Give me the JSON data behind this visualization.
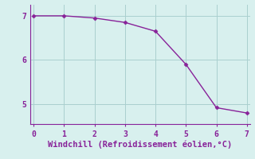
{
  "x": [
    0,
    1,
    2,
    3,
    4,
    5,
    6,
    7
  ],
  "y": [
    7.0,
    7.0,
    6.95,
    6.85,
    6.65,
    5.9,
    4.92,
    4.8
  ],
  "line_color": "#882299",
  "marker": "D",
  "markersize": 2.5,
  "linewidth": 1.0,
  "xlabel": "Windchill (Refroidissement éolien,°C)",
  "xlabel_fontsize": 7.5,
  "xlim": [
    -0.1,
    7.1
  ],
  "ylim": [
    4.55,
    7.25
  ],
  "yticks": [
    5,
    6,
    7
  ],
  "xticks": [
    0,
    1,
    2,
    3,
    4,
    5,
    6,
    7
  ],
  "grid_color": "#aacfcf",
  "bg_color": "#d8f0ee",
  "tick_color": "#882299",
  "tick_fontsize": 7,
  "xlabel_color": "#882299",
  "spine_color": "#882299"
}
